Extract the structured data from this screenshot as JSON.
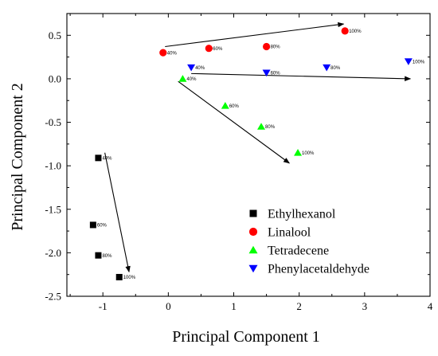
{
  "chart_data": {
    "type": "scatter",
    "xlabel": "Principal Component 1",
    "ylabel": "Principal Component 2",
    "xlim": [
      -1.55,
      4.0
    ],
    "ylim": [
      -2.5,
      0.75
    ],
    "xticks": [
      -1,
      0,
      1,
      2,
      3,
      4
    ],
    "yticks": [
      -2.5,
      -2.0,
      -1.5,
      -1.0,
      -0.5,
      0.0,
      0.5
    ],
    "ytick_labels": [
      "-2.5",
      "-2.0",
      "-1.5",
      "-1.0",
      "-0.5",
      "0.0",
      "0.5"
    ],
    "legend_position": "bottom-right",
    "series": [
      {
        "name": "Ethylhexanol",
        "marker": "square",
        "color": "#000000",
        "points": [
          {
            "x": -1.07,
            "y": -0.91,
            "label": "40%"
          },
          {
            "x": -1.15,
            "y": -1.68,
            "label": "60%"
          },
          {
            "x": -1.07,
            "y": -2.03,
            "label": "80%"
          },
          {
            "x": -0.75,
            "y": -2.28,
            "label": "100%"
          }
        ]
      },
      {
        "name": "Linalool",
        "marker": "circle",
        "color": "#ff0000",
        "points": [
          {
            "x": -0.08,
            "y": 0.3,
            "label": "40%"
          },
          {
            "x": 0.62,
            "y": 0.35,
            "label": "60%"
          },
          {
            "x": 1.5,
            "y": 0.37,
            "label": "80%"
          },
          {
            "x": 2.7,
            "y": 0.55,
            "label": "100%"
          }
        ]
      },
      {
        "name": "Tetradecene",
        "marker": "triangle-up",
        "color": "#00ff00",
        "points": [
          {
            "x": 0.22,
            "y": 0.0,
            "label": "40%"
          },
          {
            "x": 0.87,
            "y": -0.31,
            "label": "60%"
          },
          {
            "x": 1.42,
            "y": -0.55,
            "label": "80%"
          },
          {
            "x": 1.98,
            "y": -0.85,
            "label": "100%"
          }
        ]
      },
      {
        "name": "Phenylacetaldehyde",
        "marker": "triangle-down",
        "color": "#0000ff",
        "points": [
          {
            "x": 0.35,
            "y": 0.13,
            "label": "40%"
          },
          {
            "x": 1.5,
            "y": 0.07,
            "label": "60%"
          },
          {
            "x": 2.42,
            "y": 0.13,
            "label": "80%"
          },
          {
            "x": 3.67,
            "y": 0.2,
            "label": "100%"
          }
        ]
      }
    ],
    "arrows": [
      {
        "from": [
          -0.05,
          0.37
        ],
        "to": [
          2.68,
          0.63
        ]
      },
      {
        "from": [
          0.35,
          0.06
        ],
        "to": [
          3.7,
          0.0
        ]
      },
      {
        "from": [
          0.15,
          -0.03
        ],
        "to": [
          1.85,
          -0.97
        ]
      },
      {
        "from": [
          -0.97,
          -0.85
        ],
        "to": [
          -0.6,
          -2.22
        ]
      }
    ]
  }
}
